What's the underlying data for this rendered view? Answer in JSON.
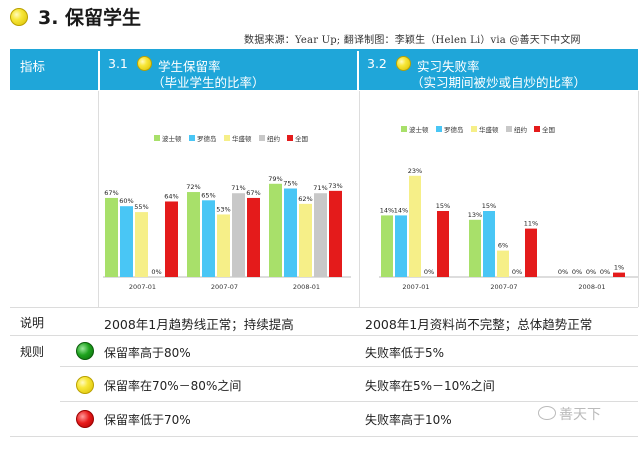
{
  "page": {
    "title": "3. 保留学生",
    "source": "数据来源：Year Up;   翻译制图：李颖生（Helen Li）via @善天下中文网"
  },
  "header": {
    "col0": "指标",
    "col1_num": "3.1",
    "col1_title": "学生保留率",
    "col1_sub": "（毕业学生的比率）",
    "col2_num": "3.2",
    "col2_title": "实习失败率",
    "col2_sub": "（实习期间被炒或自炒的比率）"
  },
  "colors": {
    "header_bg": "#1fa6d9",
    "series": [
      "#a8e06a",
      "#49c6f5",
      "#f6ef88",
      "#c8c8c8",
      "#e41b1b"
    ]
  },
  "chart_data": [
    {
      "type": "bar",
      "categories": [
        "2007-01",
        "2007-07",
        "2008-01"
      ],
      "series": [
        {
          "name": "波士顿",
          "values": [
            67,
            72,
            79
          ]
        },
        {
          "name": "罗德岛",
          "values": [
            60,
            65,
            75
          ]
        },
        {
          "name": "华盛顿",
          "values": [
            55,
            53,
            62
          ]
        },
        {
          "name": "纽约",
          "values": [
            0,
            71,
            71
          ]
        },
        {
          "name": "全国",
          "values": [
            64,
            67,
            73
          ]
        }
      ],
      "ylim": [
        0,
        100
      ],
      "legend": "top",
      "grid": false
    },
    {
      "type": "bar",
      "categories": [
        "2007-01",
        "2007-07",
        "2008-01"
      ],
      "series": [
        {
          "name": "波士顿",
          "values": [
            14,
            13,
            0
          ]
        },
        {
          "name": "罗德岛",
          "values": [
            14,
            15,
            0
          ]
        },
        {
          "name": "华盛顿",
          "values": [
            23,
            6,
            0
          ]
        },
        {
          "name": "纽约",
          "values": [
            0,
            0,
            0
          ]
        },
        {
          "name": "全国",
          "values": [
            15,
            11,
            1
          ]
        }
      ],
      "ylim": [
        0,
        30
      ],
      "legend": "top",
      "grid": false
    }
  ],
  "rows": {
    "explain": {
      "label": "说明",
      "col1": "2008年1月趋势线正常；持续提高",
      "col2": "2008年1月资料尚不完整；总体趋势正常"
    },
    "rules": {
      "label": "规则",
      "items": [
        {
          "indicator": "green",
          "col1": "保留率高于80%",
          "col2": "失败率低于5%"
        },
        {
          "indicator": "yellow",
          "col1": "保留率在70%－80%之间",
          "col2": "失败率在5%－10%之间"
        },
        {
          "indicator": "red",
          "col1": "保留率低于70%",
          "col2": "失败率高于10%"
        }
      ]
    }
  },
  "watermark": "善天下"
}
